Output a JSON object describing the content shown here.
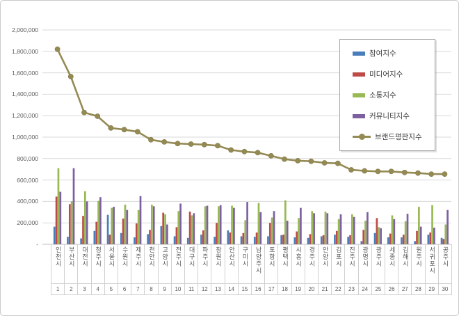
{
  "chart_data": {
    "type": "bar+line combo",
    "categories": [
      "인천시",
      "부산시",
      "대전시",
      "청주시",
      "서울시",
      "수원시",
      "제주시",
      "천안시",
      "고양시",
      "전주시",
      "대구시",
      "파주시",
      "창원시",
      "안산시",
      "구미시",
      "남양주시",
      "포항시",
      "평택시",
      "시흥시",
      "경주시",
      "안양시",
      "김포시",
      "진주시",
      "광명시",
      "광주시",
      "세종시",
      "김해시",
      "원주시",
      "서귀포시",
      "공주시"
    ],
    "rank_labels": [
      "1",
      "2",
      "3",
      "4",
      "5",
      "6",
      "7",
      "8",
      "9",
      "10",
      "11",
      "12",
      "13",
      "14",
      "15",
      "16",
      "17",
      "18",
      "19",
      "20",
      "21",
      "22",
      "23",
      "24",
      "25",
      "26",
      "27",
      "28",
      "29",
      "30"
    ],
    "series": [
      {
        "name": "참여지수",
        "type": "bar",
        "color": "#4A7EBB",
        "values": [
          165000,
          70000,
          55000,
          125000,
          275000,
          105000,
          65000,
          95000,
          170000,
          75000,
          60000,
          90000,
          70000,
          130000,
          75000,
          70000,
          75000,
          85000,
          65000,
          60000,
          75000,
          90000,
          70000,
          30000,
          105000,
          65000,
          65000,
          30000,
          90000,
          60000
        ]
      },
      {
        "name": "미디어지수",
        "type": "bar",
        "color": "#BE4B48",
        "values": [
          445000,
          375000,
          265000,
          210000,
          90000,
          240000,
          195000,
          135000,
          295000,
          160000,
          305000,
          130000,
          200000,
          110000,
          105000,
          110000,
          200000,
          90000,
          120000,
          95000,
          85000,
          125000,
          85000,
          135000,
          245000,
          100000,
          90000,
          125000,
          110000,
          50000
        ]
      },
      {
        "name": "소통지수",
        "type": "bar",
        "color": "#98B954",
        "values": [
          710000,
          400000,
          495000,
          405000,
          340000,
          370000,
          320000,
          370000,
          280000,
          310000,
          270000,
          355000,
          355000,
          360000,
          225000,
          385000,
          250000,
          410000,
          245000,
          310000,
          305000,
          235000,
          280000,
          220000,
          160000,
          270000,
          215000,
          350000,
          365000,
          185000
        ]
      },
      {
        "name": "커뮤니티지수",
        "type": "bar",
        "color": "#7D60A0",
        "values": [
          490000,
          710000,
          400000,
          440000,
          350000,
          320000,
          450000,
          355000,
          185000,
          380000,
          290000,
          360000,
          365000,
          340000,
          395000,
          300000,
          310000,
          220000,
          340000,
          290000,
          290000,
          280000,
          255000,
          300000,
          150000,
          235000,
          285000,
          165000,
          155000,
          320000
        ]
      },
      {
        "name": "브랜드평판지수",
        "type": "line",
        "color": "#948A54",
        "values": [
          1820000,
          1565000,
          1230000,
          1195000,
          1085000,
          1070000,
          1050000,
          975000,
          955000,
          940000,
          935000,
          930000,
          920000,
          880000,
          865000,
          855000,
          825000,
          795000,
          780000,
          775000,
          760000,
          755000,
          695000,
          685000,
          680000,
          680000,
          670000,
          665000,
          655000,
          655000
        ]
      }
    ],
    "ylim": [
      0,
      2000000
    ],
    "ytick_step": 200000,
    "ytick_labels": [
      "2,000,000",
      "1,800,000",
      "1,600,000",
      "1,400,000",
      "1,200,000",
      "1,000,000",
      "800,000",
      "600,000",
      "400,000",
      "200,000",
      "-"
    ],
    "grid": true,
    "legend_position": "right-top",
    "gridline_color": "#D9D9D9",
    "axis_line_color": "#BFBFBF",
    "text_color": "#595959"
  }
}
